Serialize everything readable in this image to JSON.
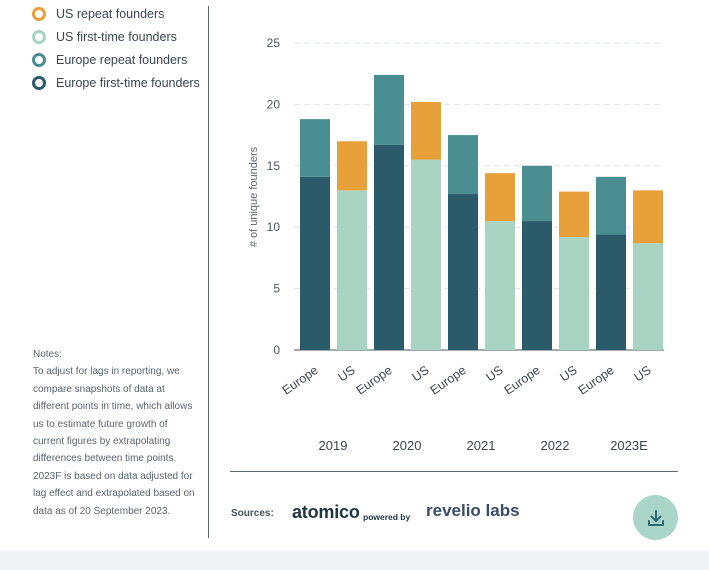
{
  "legend": [
    {
      "label": "US repeat founders",
      "color": "#e8a03a"
    },
    {
      "label": "US first-time founders",
      "color": "#a9d4c3"
    },
    {
      "label": "Europe repeat founders",
      "color": "#4b8e92"
    },
    {
      "label": "Europe first-time founders",
      "color": "#2b5a6a"
    }
  ],
  "notes": {
    "title": "Notes:",
    "text": "To adjust for lags in reporting, we compare snapshots of data at different points in time, which allows us to estimate future growth of current figures by extrapolating differences between time points. 2023F is based on data adjusted for lag effect and extrapolated based on data as of 20 September 2023."
  },
  "sources": {
    "label": "Sources:",
    "atomico": "atomico",
    "powered_by": "powered by",
    "revelio": "revelio labs"
  },
  "download": {
    "icon": "download-icon"
  },
  "chart_data": {
    "type": "bar",
    "stacked": true,
    "ylabel": "# of unique founders",
    "xlabel": "",
    "ylim": [
      0,
      25
    ],
    "yticks": [
      0,
      5,
      10,
      15,
      20,
      25
    ],
    "grid": true,
    "categories": [
      "Europe",
      "US",
      "Europe",
      "US",
      "Europe",
      "US",
      "Europe",
      "US",
      "Europe",
      "US"
    ],
    "groups": [
      "2019",
      "2019",
      "2020",
      "2020",
      "2021",
      "2021",
      "2022",
      "2022",
      "2023E",
      "2023E"
    ],
    "group_labels": [
      "2019",
      "2020",
      "2021",
      "2022",
      "2023E"
    ],
    "series": [
      {
        "name": "Europe first-time founders",
        "color": "#2b5a6a",
        "values": [
          14.1,
          0,
          16.7,
          0,
          12.7,
          0,
          10.5,
          0,
          9.4,
          0
        ]
      },
      {
        "name": "Europe repeat founders",
        "color": "#4b8e92",
        "values": [
          4.7,
          0,
          5.7,
          0,
          4.8,
          0,
          4.5,
          0,
          4.7,
          0
        ]
      },
      {
        "name": "US first-time founders",
        "color": "#a9d4c3",
        "values": [
          0,
          13.0,
          0,
          15.5,
          0,
          10.5,
          0,
          9.2,
          0,
          8.7
        ]
      },
      {
        "name": "US repeat founders",
        "color": "#e8a03a",
        "values": [
          0,
          4.0,
          0,
          4.7,
          0,
          3.9,
          0,
          3.7,
          0,
          4.3
        ]
      }
    ]
  }
}
